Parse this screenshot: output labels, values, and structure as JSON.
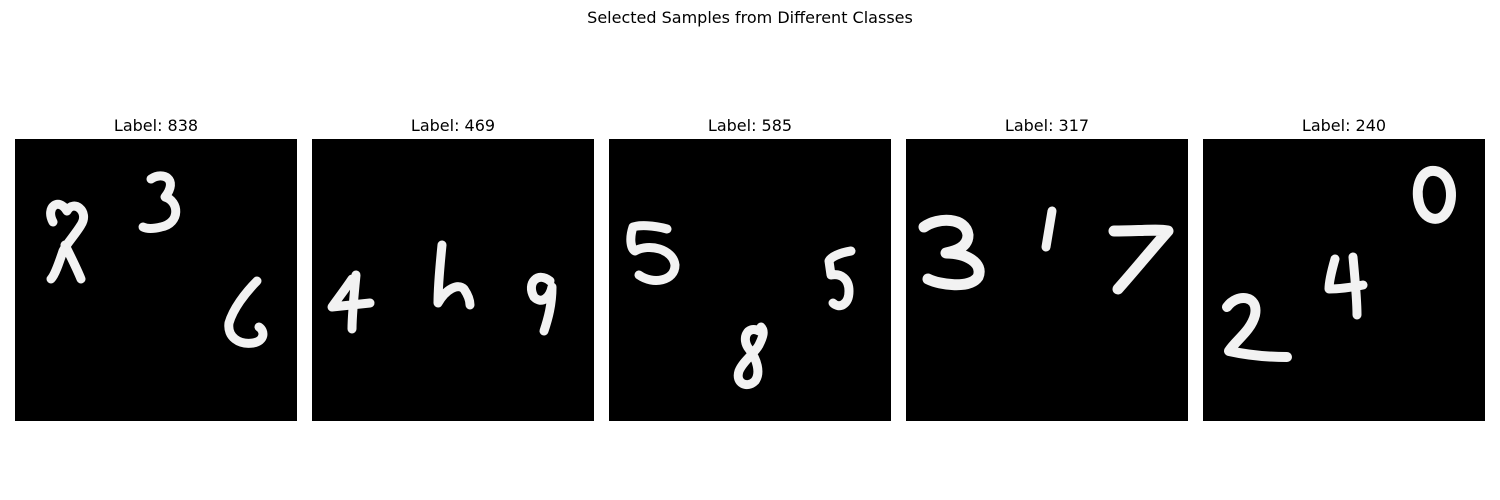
{
  "figure": {
    "title": "Selected Samples from Different Classes"
  },
  "samples": [
    {
      "title": "Label: 838",
      "digits": [
        "8",
        "3",
        "8"
      ]
    },
    {
      "title": "Label: 469",
      "digits": [
        "4",
        "6",
        "9"
      ]
    },
    {
      "title": "Label: 585",
      "digits": [
        "5",
        "8",
        "5"
      ]
    },
    {
      "title": "Label: 317",
      "digits": [
        "3",
        "1",
        "7"
      ]
    },
    {
      "title": "Label: 240",
      "digits": [
        "2",
        "4",
        "0"
      ]
    }
  ]
}
